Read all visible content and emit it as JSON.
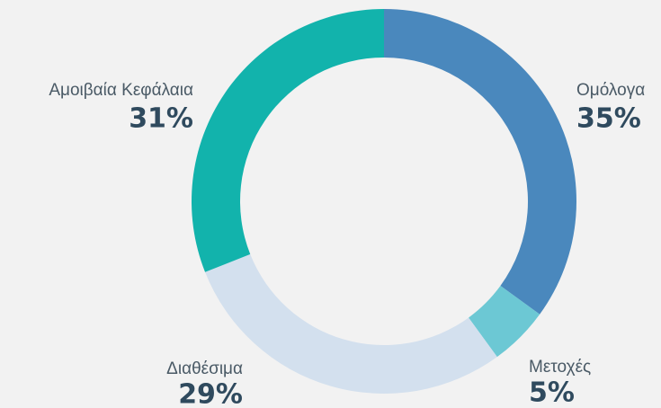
{
  "chart_data": {
    "type": "pie",
    "donut": true,
    "categories": [
      "Ομόλογα",
      "Μετοχές",
      "Διαθέσιμα",
      "Αμοιβαία Κεφάλαια"
    ],
    "values": [
      35,
      5,
      29,
      31
    ],
    "value_labels": [
      "35%",
      "5%",
      "29%",
      "31%"
    ],
    "colors": [
      "#4a88bd",
      "#6cc8d4",
      "#d3e0ee",
      "#12b3ac"
    ]
  }
}
